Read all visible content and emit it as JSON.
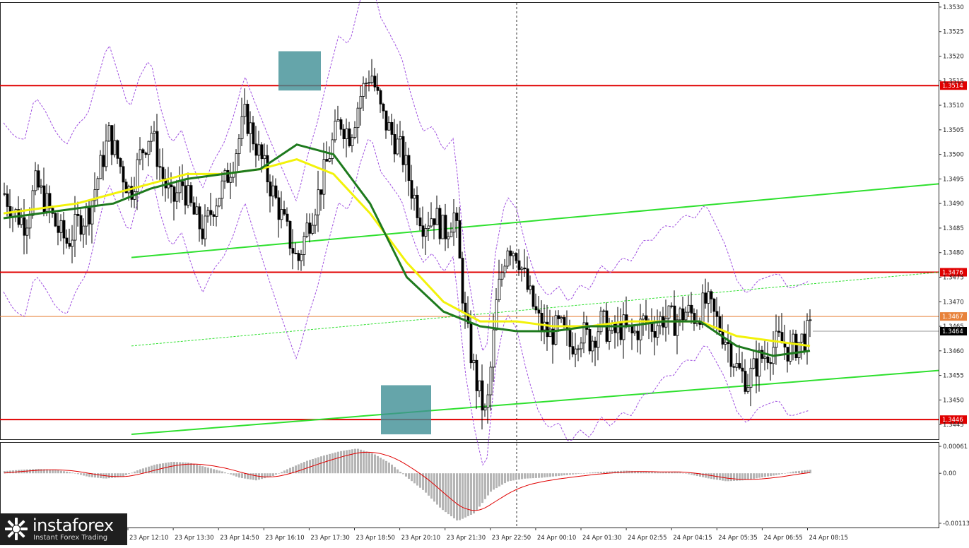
{
  "chart_data": [
    {
      "type": "candlestick",
      "symbol_hint": "price chart (5-minute candles)",
      "y_ticks": [
        "1.3530",
        "1.3525",
        "1.3520",
        "1.3515",
        "1.3510",
        "1.3505",
        "1.3500",
        "1.3495",
        "1.3490",
        "1.3485",
        "1.3480",
        "1.3475",
        "1.3470",
        "1.3465",
        "1.3460",
        "1.3455",
        "1.3450",
        "1.3445"
      ],
      "ylim": [
        1.3442,
        1.3531
      ],
      "x_ticks": [
        "23 Apr 12:10",
        "23 Apr 13:30",
        "23 Apr 14:50",
        "23 Apr 16:10",
        "23 Apr 17:30",
        "23 Apr 18:50",
        "23 Apr 20:10",
        "23 Apr 21:30",
        "23 Apr 22:50",
        "24 Apr 00:10",
        "24 Apr 01:30",
        "24 Apr 02:55",
        "24 Apr 04:15",
        "24 Apr 05:35",
        "24 Apr 06:55",
        "24 Apr 08:15"
      ],
      "horizontal_levels": [
        {
          "value": 1.3514,
          "label": "1.3514",
          "color": "#e00000"
        },
        {
          "value": 1.3476,
          "label": "1.3476",
          "color": "#e00000"
        },
        {
          "value": 1.3446,
          "label": "1.3446",
          "color": "#e00000"
        },
        {
          "value": 1.3467,
          "label": "1.3467",
          "color": "#e8823a"
        }
      ],
      "current_price": "1.3464",
      "price_path": [
        1.3492,
        1.3488,
        1.3486,
        1.3494,
        1.349,
        1.3485,
        1.3482,
        1.3486,
        1.3488,
        1.3496,
        1.3504,
        1.3498,
        1.3492,
        1.35,
        1.3505,
        1.3496,
        1.349,
        1.3494,
        1.3488,
        1.3484,
        1.349,
        1.3494,
        1.35,
        1.3508,
        1.3502,
        1.3496,
        1.349,
        1.3484,
        1.3478,
        1.3486,
        1.3492,
        1.35,
        1.3507,
        1.3504,
        1.3512,
        1.3517,
        1.3508,
        1.3504,
        1.35,
        1.3492,
        1.3486,
        1.3488,
        1.3484,
        1.3488,
        1.3466,
        1.3454,
        1.3446,
        1.347,
        1.3482,
        1.348,
        1.3472,
        1.3466,
        1.3463,
        1.3465,
        1.3461,
        1.3464,
        1.3462,
        1.3466,
        1.3463,
        1.3465,
        1.3463,
        1.3466,
        1.3465,
        1.3467,
        1.3466,
        1.3468,
        1.3467,
        1.347,
        1.3466,
        1.3462,
        1.3456,
        1.3454,
        1.3458,
        1.346,
        1.3462,
        1.346,
        1.3462,
        1.3464
      ],
      "ma_green": [
        1.3487,
        1.3488,
        1.3489,
        1.349,
        1.3493,
        1.3495,
        1.3496,
        1.3497,
        1.3502,
        1.35,
        1.349,
        1.3475,
        1.3468,
        1.3465,
        1.3464,
        1.3464,
        1.3465,
        1.3465,
        1.3466,
        1.3466,
        1.3461,
        1.3459,
        1.346
      ],
      "ma_yellow": [
        1.3488,
        1.3489,
        1.349,
        1.3492,
        1.3494,
        1.3496,
        1.3496,
        1.3497,
        1.3499,
        1.3496,
        1.3488,
        1.3478,
        1.347,
        1.3466,
        1.3466,
        1.3465,
        1.3465,
        1.3466,
        1.3466,
        1.3466,
        1.3463,
        1.3462,
        1.3461
      ],
      "markers": [
        {
          "value_top": 1.3521,
          "value_bottom": 1.3513
        },
        {
          "value_top": 1.3453,
          "value_bottom": 1.3443
        }
      ]
    },
    {
      "type": "histogram",
      "label": "oscillator (MACD)",
      "y_ticks": [
        "0.00061",
        "0.00",
        "-0.00113"
      ],
      "ylim": [
        -0.00113,
        0.00061
      ],
      "values": [
        5e-05,
        8e-05,
        0.0001,
        8e-05,
        2e-05,
        -8e-05,
        -0.00012,
        -8e-05,
        8e-05,
        0.0002,
        0.00026,
        0.00024,
        0.00014,
        4e-05,
        -0.0001,
        -0.00016,
        -6e-05,
        0.00012,
        0.00028,
        0.0004,
        0.0005,
        0.00056,
        0.00044,
        0.00022,
        -0.0001,
        -0.0004,
        -0.0008,
        -0.00108,
        -0.0009,
        -0.0004,
        -0.00018,
        -0.00012,
        -0.0001,
        -6e-05,
        -2e-05,
        2e-05,
        4e-05,
        6e-05,
        4e-05,
        2e-05,
        4e-05,
        -4e-05,
        -0.00012,
        -0.00018,
        -0.00016,
        -0.0001,
        -4e-05,
        4e-05,
        8e-05
      ]
    }
  ],
  "branding": {
    "name": "instaforex",
    "tagline": "Instant Forex Trading"
  }
}
